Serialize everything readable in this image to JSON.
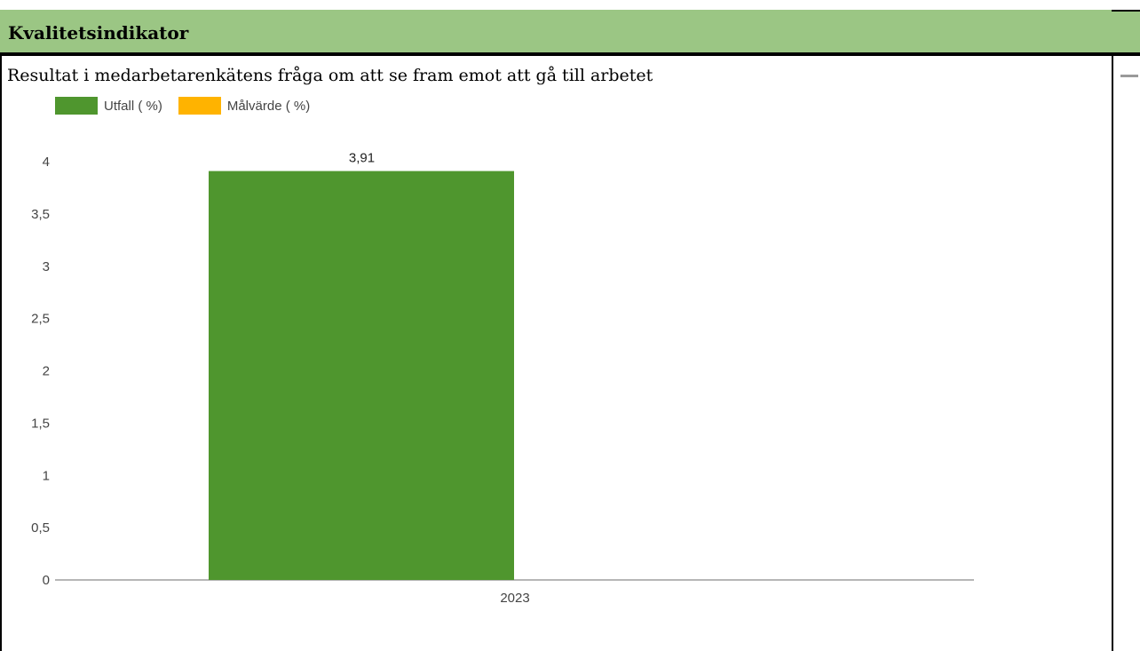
{
  "header": {
    "title": "Kvalitetsindikator"
  },
  "content": {
    "title": "Resultat i medarbetarenkätens fråga om att se fram emot att gå till arbetet"
  },
  "colors": {
    "header_bg": "#9bc684",
    "utfall": "#4f962e",
    "malvarde": "#ffb300"
  },
  "chart_data": {
    "type": "bar",
    "categories": [
      "2023"
    ],
    "series": [
      {
        "name": "Utfall ( %)",
        "color": "#4f962e",
        "values": [
          3.91
        ]
      },
      {
        "name": "Målvärde ( %)",
        "color": "#ffb300",
        "values": [
          null
        ]
      }
    ],
    "data_labels": [
      "3,91"
    ],
    "yticks": [
      "0",
      "0,5",
      "1",
      "1,5",
      "2",
      "2,5",
      "3",
      "3,5",
      "4"
    ],
    "ylim": [
      0,
      4
    ],
    "legend_position": "top-left",
    "grid": false
  }
}
